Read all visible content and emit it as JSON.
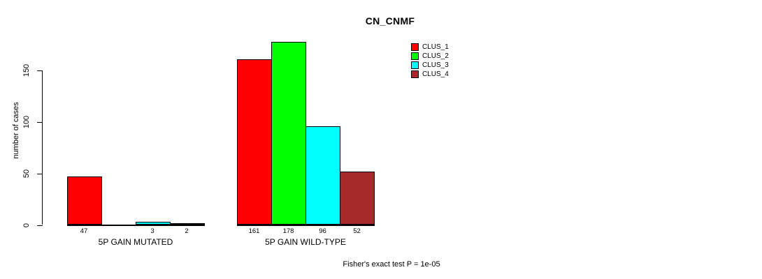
{
  "chart_data": {
    "type": "bar",
    "title": "CN_CNMF",
    "ylabel": "number of cases",
    "xlabel": "",
    "ylim": [
      0,
      180
    ],
    "yticks": [
      0,
      50,
      100,
      150
    ],
    "grid": false,
    "legend_position": "top-right",
    "categories": [
      "5P GAIN MUTATED",
      "5P GAIN WILD-TYPE"
    ],
    "series": [
      {
        "name": "CLUS_1",
        "color": "#FF0000",
        "values": [
          47,
          161
        ]
      },
      {
        "name": "CLUS_2",
        "color": "#00FF00",
        "values": [
          0,
          178
        ]
      },
      {
        "name": "CLUS_3",
        "color": "#00FFFF",
        "values": [
          3,
          96
        ]
      },
      {
        "name": "CLUS_4",
        "color": "#A52A2A",
        "values": [
          2,
          52
        ]
      }
    ],
    "bar_value_labels": [
      [
        "47",
        "",
        "3",
        "2"
      ],
      [
        "161",
        "178",
        "96",
        "52"
      ]
    ],
    "footnote": "Fisher's exact test P = 1e-05"
  }
}
